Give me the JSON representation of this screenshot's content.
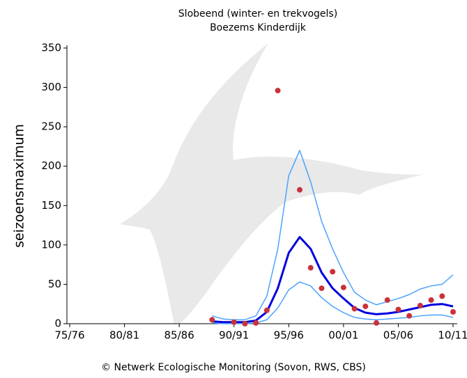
{
  "chart_data": {
    "type": "line",
    "title": "Slobeend (winter- en trekvogels)",
    "subtitle": "Boezems Kinderdijk",
    "y_label": "seizoensmaximum",
    "footer": "© Netwerk Ecologische Monitoring (Sovon, RWS, CBS)",
    "x": [
      1988,
      1989,
      1990,
      1991,
      1992,
      1993,
      1994,
      1995,
      1996,
      1997,
      1998,
      1999,
      2000,
      2001,
      2002,
      2003,
      2004,
      2005,
      2006,
      2007,
      2008,
      2009,
      2010
    ],
    "series": [
      {
        "style": "dots",
        "color": "#c8323a",
        "values": [
          5,
          null,
          2,
          0,
          1,
          17,
          296,
          null,
          170,
          71,
          45,
          66,
          46,
          19,
          22,
          1,
          30,
          18,
          10,
          23,
          30,
          35,
          15
        ]
      },
      {
        "style": "line",
        "width": 1.5,
        "color": "#4aa3ff",
        "values": [
          10,
          6,
          5,
          5,
          10,
          35,
          95,
          188,
          220,
          180,
          130,
          95,
          65,
          40,
          30,
          24,
          28,
          32,
          37,
          44,
          48,
          50,
          62
        ]
      },
      {
        "style": "line",
        "width": 3,
        "color": "#0000e0",
        "values": [
          3,
          2,
          2,
          2,
          4,
          15,
          45,
          90,
          110,
          95,
          65,
          45,
          32,
          20,
          14,
          12,
          13,
          15,
          18,
          21,
          24,
          25,
          22
        ]
      },
      {
        "style": "line",
        "width": 1.5,
        "color": "#4aa3ff",
        "values": [
          1,
          0,
          0,
          0,
          1,
          5,
          20,
          43,
          53,
          48,
          33,
          22,
          14,
          8,
          6,
          5,
          6,
          7,
          8,
          10,
          11,
          11,
          8
        ]
      }
    ],
    "xlim": [
      1975,
      2010
    ],
    "xticks": [
      {
        "value": 1975,
        "label": "75/76"
      },
      {
        "value": 1980,
        "label": "80/81"
      },
      {
        "value": 1985,
        "label": "85/86"
      },
      {
        "value": 1990,
        "label": "90/91"
      },
      {
        "value": 1995,
        "label": "95/96"
      },
      {
        "value": 2000,
        "label": "00/01"
      },
      {
        "value": 2005,
        "label": "05/06"
      },
      {
        "value": 2010,
        "label": "10/11"
      }
    ],
    "ylim": [
      0,
      350
    ],
    "yticks": [
      0,
      50,
      100,
      150,
      200,
      250,
      300,
      350
    ]
  }
}
